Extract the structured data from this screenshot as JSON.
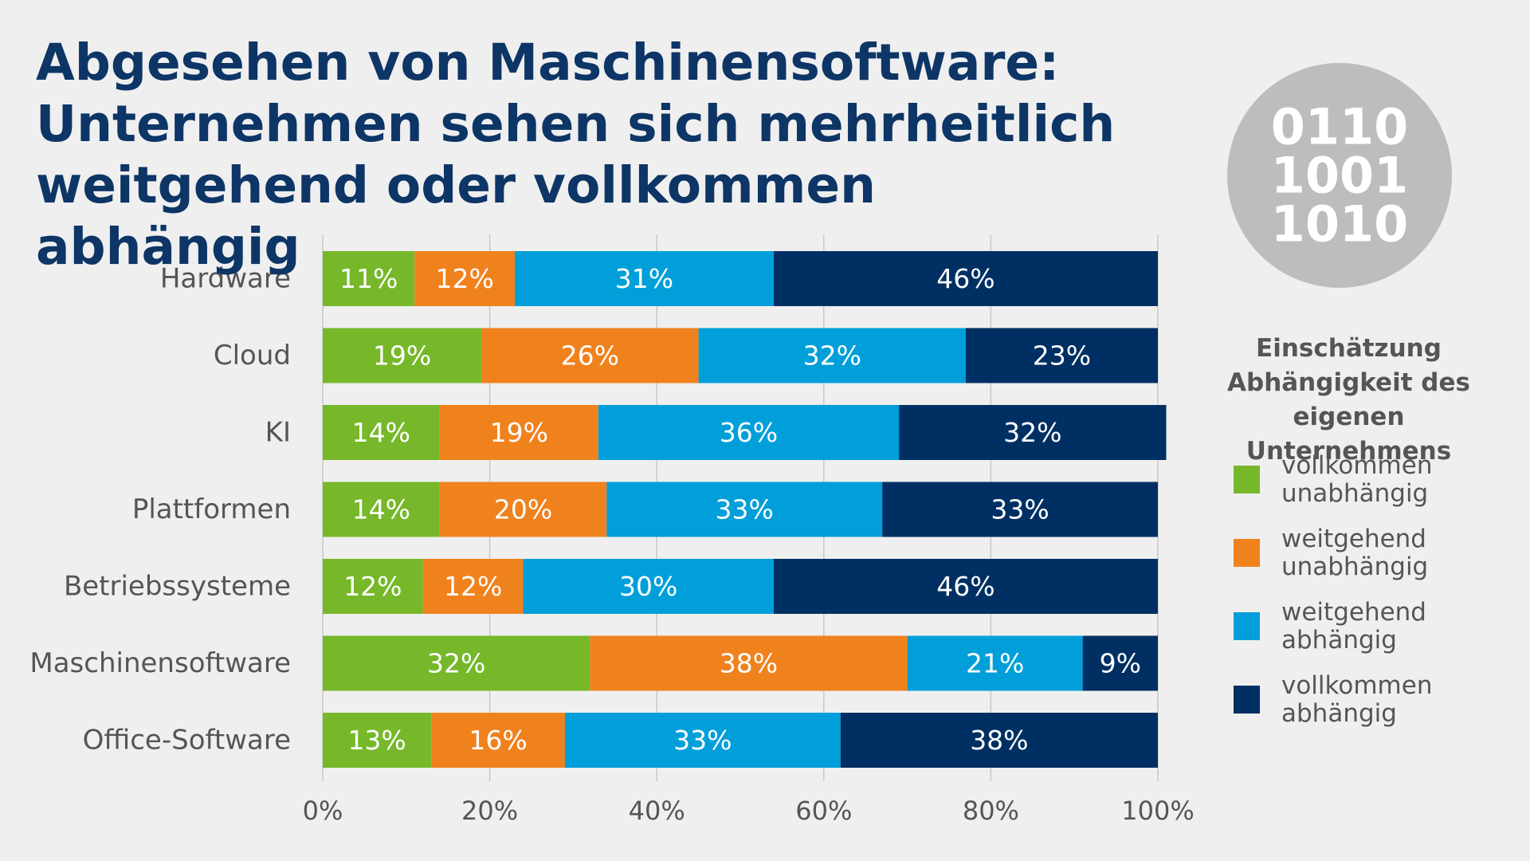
{
  "chart_data": {
    "type": "stacked-bar-horizontal",
    "title": "Abgesehen von Maschinensoftware: Unternehmen sehen sich mehrheitlich weitgehend oder vollkommen abhängig",
    "icon_lines": [
      "0110",
      "1001",
      "1010"
    ],
    "legend_title": "Einschätzung Abhängigkeit des eigenen Unternehmens",
    "categories": [
      "Hardware",
      "Cloud",
      "KI",
      "Plattformen",
      "Betriebssysteme",
      "Maschinensoftware",
      "Office-Software"
    ],
    "series": [
      {
        "name": "vollkommen unabhängig",
        "color": "#76b82a",
        "values": [
          11,
          19,
          14,
          14,
          12,
          32,
          13
        ],
        "value_labels": [
          "11%",
          "19%",
          "14%",
          "14%",
          "12%",
          "32%",
          "13%"
        ]
      },
      {
        "name": "weitgehend unabhängig",
        "color": "#f0821e",
        "values": [
          12,
          26,
          19,
          20,
          12,
          38,
          16
        ],
        "value_labels": [
          "12%",
          "26%",
          "19%",
          "20%",
          "12%",
          "38%",
          "16%"
        ]
      },
      {
        "name": "weitgehend abhängig",
        "color": "#009fda",
        "values": [
          31,
          32,
          36,
          33,
          30,
          21,
          33
        ],
        "value_labels": [
          "31%",
          "32%",
          "36%",
          "33%",
          "30%",
          "21%",
          "33%"
        ]
      },
      {
        "name": "vollkommen abhängig",
        "color": "#003063",
        "values": [
          46,
          23,
          32,
          33,
          46,
          9,
          38
        ],
        "value_labels": [
          "46%",
          "23%",
          "32%",
          "33%",
          "46%",
          "9%",
          "38%"
        ]
      }
    ],
    "xlim": [
      0,
      100
    ],
    "xticks": [
      {
        "value": 0,
        "label": "0%"
      },
      {
        "value": 20,
        "label": "20%"
      },
      {
        "value": 40,
        "label": "40%"
      },
      {
        "value": 60,
        "label": "60%"
      },
      {
        "value": 80,
        "label": "80%"
      },
      {
        "value": 100,
        "label": "100%"
      }
    ],
    "grid": true
  }
}
